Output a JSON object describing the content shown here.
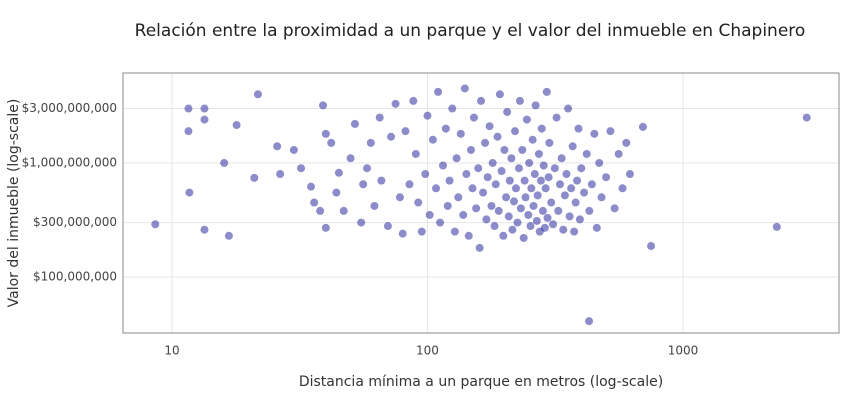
{
  "chart_data": {
    "type": "scatter",
    "title": "Relación entre la proximidad a un parque y el valor del inmueble en Chapinero",
    "x_label": "Distancia mínima a un parque en metros (log-scale)",
    "y_label": "Valor del inmueble (log-scale)",
    "xlog": true,
    "ylog": true,
    "grid": true,
    "xlim": [
      6.43,
      4080
    ],
    "ylim": [
      32300000,
      6150000000
    ],
    "xticks": [
      10,
      100,
      1000
    ],
    "yticks": [
      {
        "value": 100000000,
        "label": "$100,000,000"
      },
      {
        "value": 300000000,
        "label": "$300,000,000"
      },
      {
        "value": 1000000000,
        "label": "$1,000,000,000"
      },
      {
        "value": 3000000000,
        "label": "$3,000,000,000"
      }
    ],
    "color": "#00008b",
    "x": [
      8.6,
      11.6,
      11.6,
      11.7,
      13.4,
      13.4,
      13.4,
      16,
      16.7,
      17.9,
      21.7,
      21,
      25.8,
      26.5,
      429,
      750,
      2330,
      3050,
      697,
      30,
      32,
      35,
      36,
      38,
      39,
      40,
      40,
      42,
      44,
      45,
      47,
      50,
      52,
      55,
      56,
      58,
      60,
      62,
      65,
      66,
      70,
      72,
      75,
      78,
      80,
      82,
      85,
      88,
      90,
      92,
      95,
      98,
      100,
      102,
      105,
      108,
      110,
      112,
      115,
      118,
      120,
      122,
      125,
      128,
      130,
      132,
      135,
      138,
      140,
      142,
      145,
      148,
      150,
      152,
      155,
      158,
      160,
      162,
      165,
      168,
      170,
      172,
      175,
      178,
      180,
      183,
      185,
      188,
      190,
      192,
      195,
      198,
      200,
      203,
      205,
      208,
      210,
      213,
      215,
      218,
      220,
      222,
      225,
      228,
      230,
      232,
      235,
      238,
      240,
      242,
      245,
      248,
      250,
      253,
      255,
      258,
      260,
      263,
      265,
      268,
      270,
      273,
      275,
      278,
      280,
      283,
      285,
      288,
      290,
      293,
      295,
      298,
      300,
      305,
      310,
      315,
      320,
      325,
      330,
      335,
      340,
      345,
      350,
      355,
      360,
      365,
      370,
      375,
      380,
      385,
      390,
      395,
      400,
      410,
      420,
      430,
      440,
      450,
      460,
      470,
      480,
      500,
      520,
      540,
      560,
      580,
      600,
      620
    ],
    "values": [
      290000000,
      3000000000,
      1900000000,
      550000000,
      3000000000,
      2400000000,
      260000000,
      1000000000,
      230000000,
      2150000000,
      4000000000,
      740000000,
      1400000000,
      800000000,
      41000000,
      187000000,
      275000000,
      2500000000,
      2070000000,
      1300000000,
      900000000,
      620000000,
      450000000,
      380000000,
      3200000000,
      1800000000,
      270000000,
      1500000000,
      550000000,
      820000000,
      380000000,
      1100000000,
      2200000000,
      300000000,
      650000000,
      900000000,
      1500000000,
      420000000,
      2500000000,
      700000000,
      280000000,
      1700000000,
      3300000000,
      500000000,
      240000000,
      1900000000,
      650000000,
      3500000000,
      1200000000,
      450000000,
      250000000,
      800000000,
      2600000000,
      350000000,
      1600000000,
      600000000,
      4200000000,
      300000000,
      950000000,
      2000000000,
      420000000,
      700000000,
      3000000000,
      250000000,
      1100000000,
      500000000,
      1800000000,
      350000000,
      4500000000,
      800000000,
      230000000,
      1300000000,
      600000000,
      2500000000,
      400000000,
      900000000,
      180000000,
      3500000000,
      550000000,
      1500000000,
      320000000,
      750000000,
      2100000000,
      420000000,
      1000000000,
      280000000,
      650000000,
      1700000000,
      380000000,
      4000000000,
      850000000,
      230000000,
      1300000000,
      500000000,
      2800000000,
      340000000,
      700000000,
      1100000000,
      260000000,
      460000000,
      1900000000,
      600000000,
      300000000,
      900000000,
      3500000000,
      400000000,
      1300000000,
      220000000,
      700000000,
      500000000,
      2400000000,
      350000000,
      1000000000,
      280000000,
      600000000,
      1600000000,
      420000000,
      800000000,
      3200000000,
      310000000,
      520000000,
      1200000000,
      250000000,
      700000000,
      2000000000,
      380000000,
      950000000,
      270000000,
      600000000,
      4200000000,
      330000000,
      750000000,
      1500000000,
      450000000,
      290000000,
      900000000,
      2500000000,
      380000000,
      650000000,
      1100000000,
      260000000,
      520000000,
      800000000,
      3000000000,
      340000000,
      600000000,
      1400000000,
      250000000,
      450000000,
      700000000,
      2000000000,
      320000000,
      900000000,
      550000000,
      1200000000,
      380000000,
      650000000,
      1800000000,
      270000000,
      1000000000,
      500000000,
      750000000,
      1900000000,
      400000000,
      1200000000,
      600000000,
      1500000000,
      800000000
    ]
  }
}
